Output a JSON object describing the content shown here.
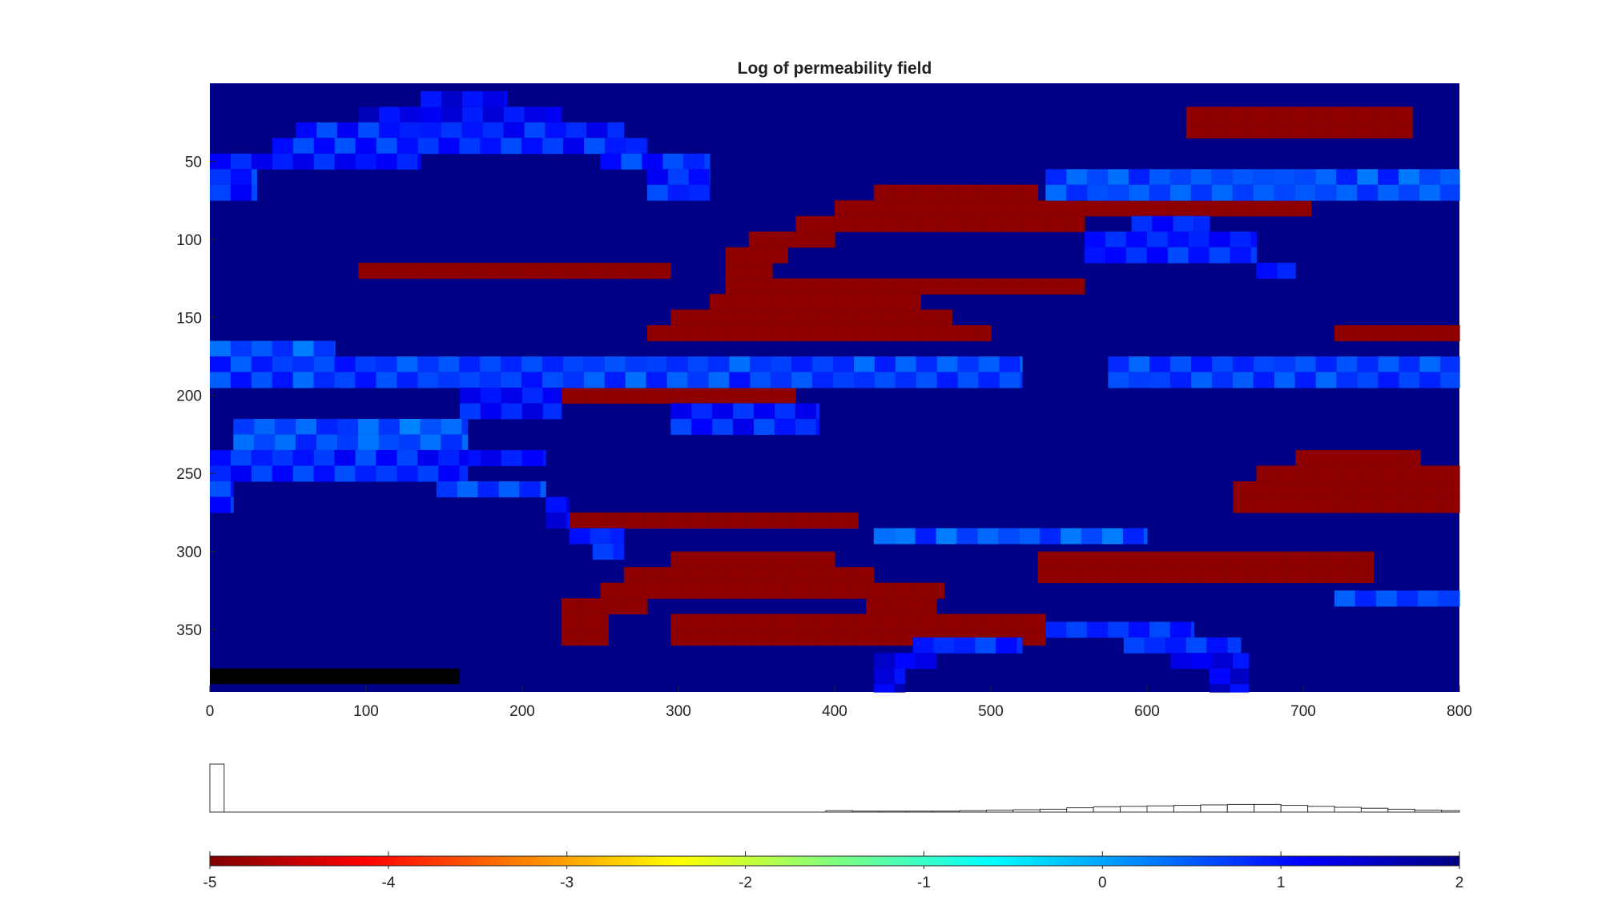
{
  "chart_data": [
    {
      "type": "heatmap",
      "title": "Log of permeability field",
      "xlabel": "",
      "ylabel": "",
      "xlim": [
        0,
        800
      ],
      "ylim": [
        0,
        390
      ],
      "y_reversed": true,
      "x_ticks": [
        "0",
        "100",
        "200",
        "300",
        "400",
        "500",
        "600",
        "700",
        "800"
      ],
      "y_ticks": [
        "50",
        "100",
        "150",
        "200",
        "250",
        "300",
        "350"
      ],
      "cell_size": [
        13.3,
        10
      ],
      "background_value": 1.95,
      "regions": [
        {
          "value": -4.9,
          "x": [
            625,
            770
          ],
          "y": [
            15,
            35
          ]
        },
        {
          "value": -4.9,
          "x": [
            425,
            530
          ],
          "y": [
            65,
            75
          ]
        },
        {
          "value": -4.9,
          "x": [
            400,
            705
          ],
          "y": [
            75,
            85
          ]
        },
        {
          "value": -4.9,
          "x": [
            375,
            560
          ],
          "y": [
            85,
            95
          ]
        },
        {
          "value": -4.9,
          "x": [
            345,
            400
          ],
          "y": [
            95,
            105
          ]
        },
        {
          "value": -4.9,
          "x": [
            330,
            370
          ],
          "y": [
            105,
            115
          ]
        },
        {
          "value": -4.9,
          "x": [
            95,
            295
          ],
          "y": [
            115,
            125
          ]
        },
        {
          "value": -4.9,
          "x": [
            330,
            360
          ],
          "y": [
            115,
            135
          ]
        },
        {
          "value": -4.9,
          "x": [
            360,
            560
          ],
          "y": [
            125,
            135
          ]
        },
        {
          "value": -4.9,
          "x": [
            320,
            455
          ],
          "y": [
            135,
            145
          ]
        },
        {
          "value": -4.9,
          "x": [
            295,
            475
          ],
          "y": [
            145,
            155
          ]
        },
        {
          "value": -4.9,
          "x": [
            280,
            500
          ],
          "y": [
            155,
            165
          ]
        },
        {
          "value": -4.9,
          "x": [
            720,
            800
          ],
          "y": [
            155,
            165
          ]
        },
        {
          "value": -4.9,
          "x": [
            200,
            375
          ],
          "y": [
            195,
            205
          ]
        },
        {
          "value": -4.9,
          "x": [
            695,
            775
          ],
          "y": [
            235,
            245
          ]
        },
        {
          "value": -4.9,
          "x": [
            670,
            800
          ],
          "y": [
            245,
            255
          ]
        },
        {
          "value": -4.9,
          "x": [
            655,
            800
          ],
          "y": [
            255,
            275
          ]
        },
        {
          "value": -4.9,
          "x": [
            225,
            415
          ],
          "y": [
            275,
            285
          ]
        },
        {
          "value": -4.9,
          "x": [
            295,
            400
          ],
          "y": [
            300,
            310
          ]
        },
        {
          "value": -4.9,
          "x": [
            530,
            745
          ],
          "y": [
            300,
            320
          ]
        },
        {
          "value": -4.9,
          "x": [
            265,
            425
          ],
          "y": [
            310,
            320
          ]
        },
        {
          "value": -4.9,
          "x": [
            250,
            470
          ],
          "y": [
            320,
            330
          ]
        },
        {
          "value": -4.9,
          "x": [
            225,
            280
          ],
          "y": [
            330,
            340
          ]
        },
        {
          "value": -4.9,
          "x": [
            420,
            465
          ],
          "y": [
            330,
            340
          ]
        },
        {
          "value": -4.9,
          "x": [
            225,
            255
          ],
          "y": [
            340,
            360
          ]
        },
        {
          "value": -4.9,
          "x": [
            295,
            535
          ],
          "y": [
            340,
            360
          ]
        },
        {
          "value": 1.25,
          "x": [
            95,
            225
          ],
          "y": [
            15,
            25
          ]
        },
        {
          "value": 1.15,
          "x": [
            135,
            190
          ],
          "y": [
            5,
            15
          ]
        },
        {
          "value": 0.95,
          "x": [
            55,
            265
          ],
          "y": [
            25,
            35
          ]
        },
        {
          "value": 0.9,
          "x": [
            40,
            280
          ],
          "y": [
            35,
            45
          ]
        },
        {
          "value": 1.05,
          "x": [
            0,
            135
          ],
          "y": [
            45,
            55
          ]
        },
        {
          "value": 0.85,
          "x": [
            250,
            320
          ],
          "y": [
            45,
            55
          ]
        },
        {
          "value": 0.9,
          "x": [
            0,
            30
          ],
          "y": [
            55,
            65
          ]
        },
        {
          "value": 0.95,
          "x": [
            0,
            30
          ],
          "y": [
            65,
            75
          ]
        },
        {
          "value": 0.9,
          "x": [
            280,
            320
          ],
          "y": [
            55,
            75
          ]
        },
        {
          "value": 0.6,
          "x": [
            535,
            800
          ],
          "y": [
            55,
            75
          ]
        },
        {
          "value": 0.85,
          "x": [
            590,
            640
          ],
          "y": [
            85,
            95
          ]
        },
        {
          "value": 0.95,
          "x": [
            560,
            670
          ],
          "y": [
            95,
            115
          ]
        },
        {
          "value": 1.05,
          "x": [
            670,
            695
          ],
          "y": [
            115,
            125
          ]
        },
        {
          "value": 0.6,
          "x": [
            0,
            80
          ],
          "y": [
            165,
            175
          ]
        },
        {
          "value": 0.7,
          "x": [
            0,
            520
          ],
          "y": [
            175,
            195
          ]
        },
        {
          "value": 0.7,
          "x": [
            575,
            800
          ],
          "y": [
            175,
            195
          ]
        },
        {
          "value": 1.0,
          "x": [
            160,
            225
          ],
          "y": [
            195,
            215
          ]
        },
        {
          "value": 0.95,
          "x": [
            295,
            390
          ],
          "y": [
            205,
            225
          ]
        },
        {
          "value": 0.55,
          "x": [
            15,
            165
          ],
          "y": [
            215,
            235
          ]
        },
        {
          "value": 1.1,
          "x": [
            160,
            215
          ],
          "y": [
            235,
            245
          ]
        },
        {
          "value": 0.9,
          "x": [
            0,
            165
          ],
          "y": [
            235,
            255
          ]
        },
        {
          "value": 0.6,
          "x": [
            145,
            215
          ],
          "y": [
            255,
            265
          ]
        },
        {
          "value": 0.9,
          "x": [
            0,
            15
          ],
          "y": [
            255,
            275
          ]
        },
        {
          "value": 1.15,
          "x": [
            215,
            230
          ],
          "y": [
            265,
            285
          ]
        },
        {
          "value": 0.85,
          "x": [
            230,
            265
          ],
          "y": [
            285,
            295
          ]
        },
        {
          "value": 0.8,
          "x": [
            245,
            265
          ],
          "y": [
            295,
            305
          ]
        },
        {
          "value": 0.6,
          "x": [
            425,
            600
          ],
          "y": [
            285,
            295
          ]
        },
        {
          "value": 0.7,
          "x": [
            720,
            800
          ],
          "y": [
            325,
            335
          ]
        },
        {
          "value": 0.85,
          "x": [
            535,
            630
          ],
          "y": [
            345,
            355
          ]
        },
        {
          "value": 0.85,
          "x": [
            450,
            520
          ],
          "y": [
            355,
            365
          ]
        },
        {
          "value": 0.85,
          "x": [
            585,
            660
          ],
          "y": [
            355,
            365
          ]
        },
        {
          "value": 1.2,
          "x": [
            425,
            465
          ],
          "y": [
            365,
            375
          ]
        },
        {
          "value": 1.2,
          "x": [
            615,
            665
          ],
          "y": [
            365,
            375
          ]
        },
        {
          "value": 1.3,
          "x": [
            425,
            445
          ],
          "y": [
            375,
            390
          ]
        },
        {
          "value": 1.3,
          "x": [
            640,
            665
          ],
          "y": [
            375,
            390
          ]
        }
      ],
      "masked_region": {
        "x": [
          0,
          160
        ],
        "y": [
          375,
          385
        ],
        "color": "#000000"
      }
    },
    {
      "type": "bar",
      "title": "",
      "xlabel": "",
      "ylabel": "",
      "xlim": [
        -5,
        2
      ],
      "ylim": [
        0,
        100
      ],
      "bin_edges": [
        -5,
        -4.92,
        -1.55,
        -1.4,
        -1.25,
        -1.1,
        -0.95,
        -0.8,
        -0.65,
        -0.5,
        -0.35,
        -0.2,
        -0.05,
        0.1,
        0.25,
        0.4,
        0.55,
        0.7,
        0.85,
        1.0,
        1.15,
        1.3,
        1.45,
        1.6,
        1.75,
        1.9,
        2.0
      ],
      "values": [
        100,
        0,
        3,
        2,
        2,
        2,
        2,
        3,
        4,
        5,
        6,
        9,
        11,
        12,
        13,
        14,
        15,
        16,
        16,
        14,
        12,
        10,
        8,
        6,
        4,
        3
      ]
    },
    {
      "type": "colorbar",
      "colormap": "jet-reversed",
      "range": [
        -5,
        2
      ],
      "ticks": [
        "-5",
        "-4",
        "-3",
        "-2",
        "-1",
        "0",
        "1",
        "2"
      ],
      "tick_values": [
        -5,
        -4,
        -3,
        -2,
        -1,
        0,
        1,
        2
      ]
    }
  ]
}
